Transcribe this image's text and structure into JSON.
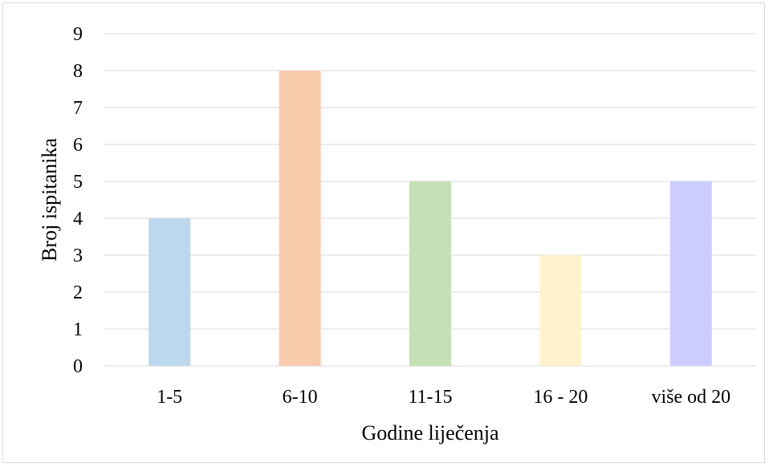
{
  "chart_data": {
    "type": "bar",
    "categories": [
      "1-5",
      "6-10",
      "11-15",
      "16 - 20",
      "više od 20"
    ],
    "values": [
      4,
      8,
      5,
      3,
      5
    ],
    "xlabel": "Godine liječenja",
    "ylabel": "Broj ispitanika",
    "ylim": [
      0,
      9
    ],
    "yticks": [
      0,
      1,
      2,
      3,
      4,
      5,
      6,
      7,
      8,
      9
    ],
    "grid": true,
    "legend": "none",
    "bar_colors": [
      "#bdd7ee",
      "#f8cbad",
      "#c5e0b4",
      "#fff2cc",
      "#ccccff"
    ],
    "gridline_color": "#d9d9d9",
    "axis_color": "#d9d9d9"
  }
}
